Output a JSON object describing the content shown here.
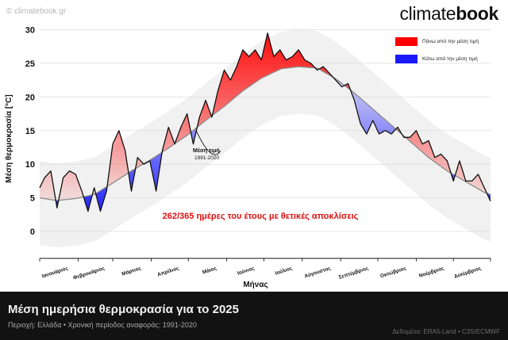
{
  "watermark": "© climatebook.gr",
  "brand": {
    "light": "climate",
    "bold": "book"
  },
  "legend": {
    "above_label": "Πάνω από την μέση τιμή",
    "below_label": "Κάτω από την μέση τιμή",
    "above_color": "#ff0000",
    "below_color": "#1a1aff"
  },
  "footer": {
    "title": "Μέση ημερήσια θερμοκρασία για το 2025",
    "subtitle": "Περιοχή: Ελλάδα • Χρονική περίοδος αναφοράς: 1991-2020",
    "credit": "Δεδομένα: ERA5-Land • C3S/ECMWF"
  },
  "chart_data": {
    "type": "line",
    "title": "",
    "xlabel": "Μήνας",
    "ylabel": "Μέση θερμοκρασία [°C]",
    "ylim": [
      -4,
      31
    ],
    "yticks": [
      0,
      5,
      10,
      15,
      20,
      25,
      30
    ],
    "categories": [
      "Ιανουάριος",
      "Φεβρουάριος",
      "Μάρτιος",
      "Απρίλιος",
      "Μάιος",
      "Ιούνιος",
      "Ιούλιος",
      "Αύγουστος",
      "Σεπτέμβριος",
      "Οκτώβριος",
      "Νοέμβριος",
      "Δεκέμβριος"
    ],
    "grid": true,
    "annotation": {
      "label": "Μέση τιμή",
      "sublabel": "1991-2020"
    },
    "highlight_text": "262/365 ημέρες του έτους με θετικές αποκλίσεις",
    "series": [
      {
        "name": "Μέση τιμή 1991-2020",
        "x": [
          1,
          15,
          30,
          45,
          60,
          75,
          90,
          105,
          120,
          135,
          150,
          165,
          180,
          196,
          210,
          225,
          240,
          255,
          270,
          285,
          300,
          315,
          330,
          345,
          360,
          365
        ],
        "values": [
          5.0,
          4.6,
          4.9,
          5.5,
          7.2,
          9.0,
          10.6,
          12.4,
          14.3,
          16.5,
          18.6,
          20.9,
          22.8,
          24.2,
          24.5,
          24.3,
          22.7,
          20.6,
          18.2,
          15.8,
          13.4,
          11.0,
          9.0,
          7.4,
          5.8,
          5.5
        ]
      },
      {
        "name": "2025",
        "x": [
          1,
          5,
          10,
          15,
          20,
          25,
          30,
          35,
          40,
          45,
          50,
          55,
          60,
          65,
          70,
          75,
          80,
          85,
          90,
          95,
          100,
          105,
          110,
          115,
          120,
          125,
          130,
          135,
          140,
          145,
          150,
          155,
          160,
          165,
          170,
          175,
          180,
          185,
          190,
          195,
          200,
          205,
          210,
          215,
          220,
          225,
          230,
          235,
          240,
          245,
          250,
          255,
          260,
          265,
          270,
          275,
          280,
          285,
          290,
          295,
          300,
          305,
          310,
          315,
          320,
          325,
          330,
          335,
          340,
          345,
          350,
          355,
          360,
          365
        ],
        "values": [
          6.5,
          8.0,
          9.0,
          3.5,
          8.0,
          9.0,
          8.5,
          6.0,
          3.0,
          6.5,
          3.0,
          6.0,
          13.0,
          15.0,
          12.0,
          6.0,
          11.0,
          10.0,
          10.5,
          6.0,
          12.0,
          15.5,
          13.0,
          15.5,
          17.5,
          13.0,
          17.0,
          19.5,
          17.0,
          21.0,
          24.0,
          22.5,
          24.5,
          27.0,
          26.0,
          27.0,
          25.5,
          29.5,
          26.0,
          27.0,
          25.5,
          26.0,
          27.0,
          25.5,
          25.0,
          24.0,
          24.5,
          23.5,
          22.5,
          21.5,
          22.0,
          19.5,
          16.0,
          14.5,
          16.5,
          14.5,
          15.0,
          14.5,
          15.5,
          14.0,
          14.0,
          15.0,
          13.0,
          13.5,
          11.0,
          11.5,
          10.5,
          7.5,
          10.5,
          7.5,
          7.5,
          8.5,
          6.5,
          4.5
        ]
      }
    ]
  }
}
